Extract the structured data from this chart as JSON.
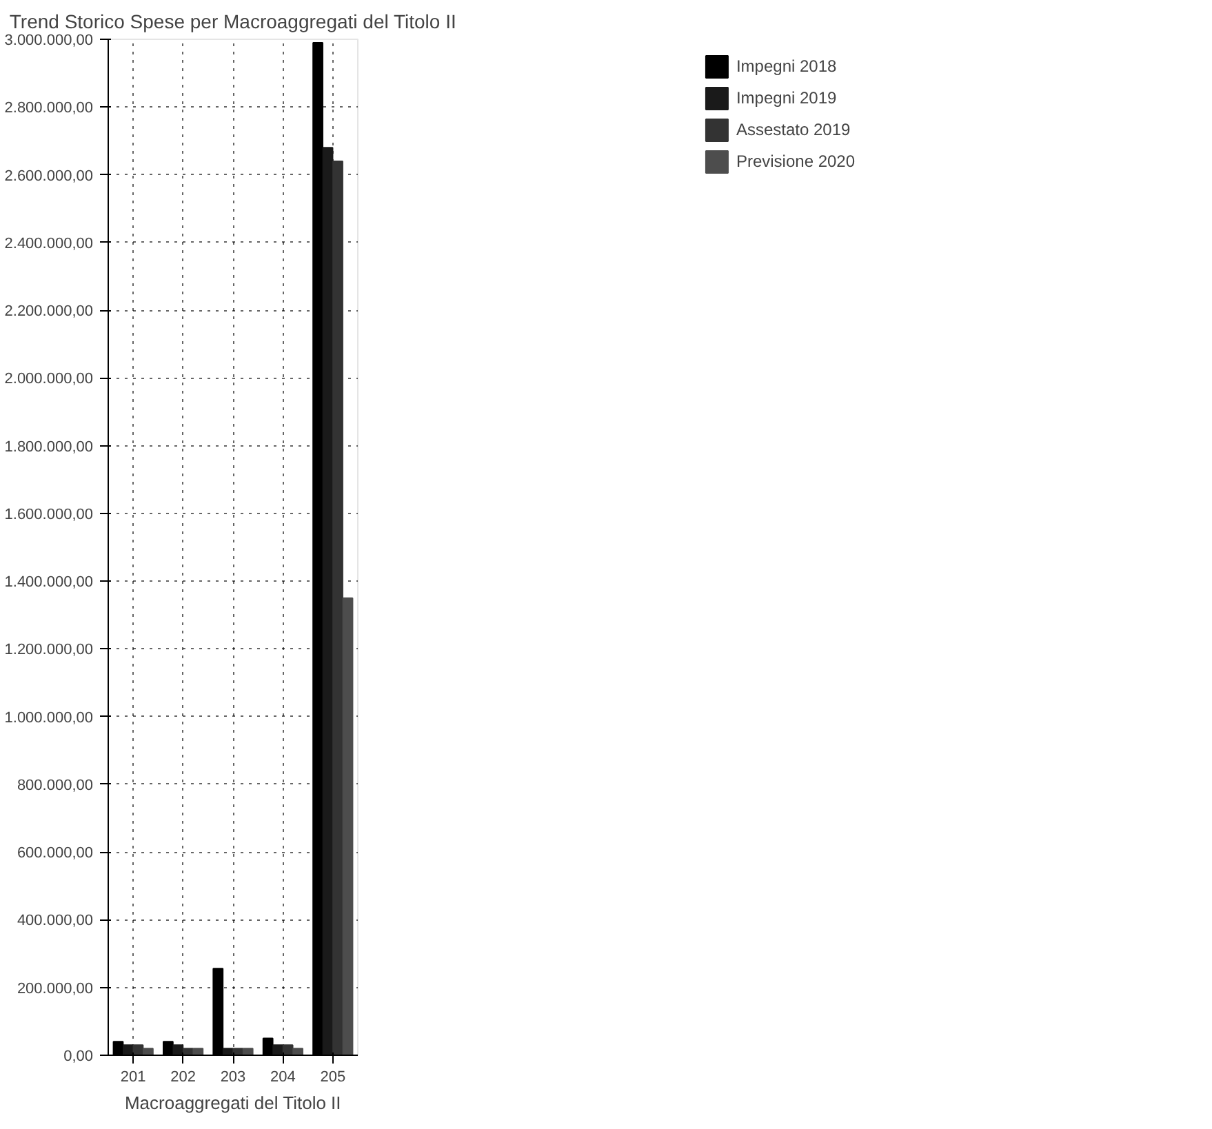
{
  "chart_data": {
    "type": "bar",
    "title": "Trend Storico Spese per Macroaggregati del Titolo II",
    "xlabel": "Macroaggregati del Titolo II",
    "categories": [
      "201",
      "202",
      "203",
      "204",
      "205"
    ],
    "series": [
      {
        "name": "Impegni 2018",
        "color": "#000000",
        "values": [
          40000,
          40000,
          256000,
          50000,
          2990000
        ]
      },
      {
        "name": "Impegni 2019",
        "color": "#1a1a1a",
        "values": [
          30000,
          30000,
          20000,
          30000,
          2680000
        ]
      },
      {
        "name": "Assestato 2019",
        "color": "#333333",
        "values": [
          30000,
          20000,
          20000,
          30000,
          2640000
        ]
      },
      {
        "name": "Previsione 2020",
        "color": "#4d4d4d",
        "values": [
          20000,
          20000,
          20000,
          20000,
          1350000
        ]
      }
    ],
    "ylim": [
      0,
      3000000
    ],
    "yticks": [
      {
        "value": 0,
        "label": "0,00"
      },
      {
        "value": 200000,
        "label": "200.000,00"
      },
      {
        "value": 400000,
        "label": "400.000,00"
      },
      {
        "value": 600000,
        "label": "600.000,00"
      },
      {
        "value": 800000,
        "label": "800.000,00"
      },
      {
        "value": 1000000,
        "label": "1.000.000,00"
      },
      {
        "value": 1200000,
        "label": "1.200.000,00"
      },
      {
        "value": 1400000,
        "label": "1.400.000,00"
      },
      {
        "value": 1600000,
        "label": "1.600.000,00"
      },
      {
        "value": 1800000,
        "label": "1.800.000,00"
      },
      {
        "value": 2000000,
        "label": "2.000.000,00"
      },
      {
        "value": 2200000,
        "label": "2.200.000,00"
      },
      {
        "value": 2400000,
        "label": "2.400.000,00"
      },
      {
        "value": 2600000,
        "label": "2.600.000,00"
      },
      {
        "value": 2800000,
        "label": "2.800.000,00"
      },
      {
        "value": 3000000,
        "label": "3.000.000,00"
      }
    ],
    "grid": true,
    "legend": "top right"
  }
}
